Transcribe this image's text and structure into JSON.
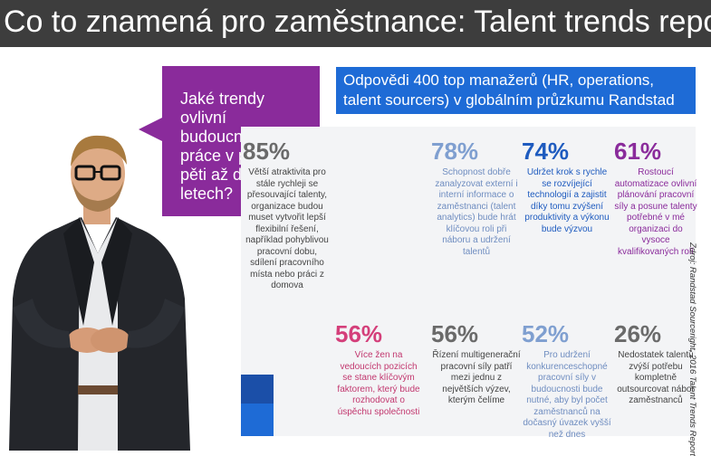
{
  "title": "Co to znamená pro zaměstnance: Talent trends report",
  "question": "Jaké trendy ovlivní budoucnost práce v příštích pěti až deseti letech?",
  "header": "Odpovědi 400 top manažerů (HR, operations, talent sourcers) v globálním průzkumu Randstad",
  "source": "Zdroj: Randstad Sourceright, 2016 Talent Trends Report",
  "stats": [
    {
      "pct": "85%",
      "text": "Větší atraktivita pro stále rychleji se přesouvající talenty, organizace budou muset vytvořit lepší flexibilní řešení, například pohyblivou pracovní dobu, sdílení pracovního místa nebo práci z domova"
    },
    {
      "pct": "78%",
      "text": "Schopnost dobře zanalyzovat externí i interní informace o zaměstnanci (talent analytics) bude hrát klíčovou roli při náboru a udržení talentů"
    },
    {
      "pct": "74%",
      "text": "Udržet krok s rychle se rozvíjející technologií a zajistit díky tomu zvýšení produktivity a výkonu bude výzvou"
    },
    {
      "pct": "61%",
      "text": "Rostoucí automatizace ovlivní plánování pracovní síly a posune talenty potřebné v mé organizaci do vysoce kvalifikovaných rolí"
    },
    {
      "pct": "56%",
      "text": "Více žen na vedoucích pozicích se stane klíčovým faktorem, který bude rozhodovat o úspěchu společnosti"
    },
    {
      "pct": "56%",
      "text": "Řízení multigenerační pracovní síly patří mezi jednu z největších výzev, kterým čelíme"
    },
    {
      "pct": "52%",
      "text": "Pro udržení konkurenceschopné pracovní síly v budoucnosti bude nutné, aby byl počet zaměstnanců na dočasný úvazek vyšší než dnes"
    },
    {
      "pct": "26%",
      "text": "Nedostatek talentů zvýší potřebu kompletně outsourcovat nábor zaměstnanců"
    }
  ],
  "colors": {
    "title_bg": "#3d3d3d",
    "purple": "#8a2b9b",
    "blue": "#1e6bd6",
    "pink": "#d43f7a"
  }
}
